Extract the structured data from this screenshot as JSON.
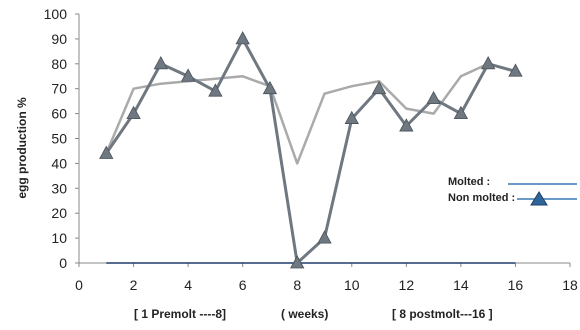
{
  "chart_data": {
    "type": "line",
    "xlim": [
      0,
      18
    ],
    "ylim": [
      0,
      100
    ],
    "x_ticks": [
      0,
      2,
      4,
      6,
      8,
      10,
      12,
      14,
      16,
      18
    ],
    "y_ticks": [
      0,
      10,
      20,
      30,
      40,
      50,
      60,
      70,
      80,
      90,
      100
    ],
    "ylabel": "egg production %",
    "x_sublabels": [
      "[ 1  Premolt ----8]",
      "( weeks)",
      "[ 8  postmolt---16 ]"
    ],
    "grid": false,
    "legend_position": "right",
    "legend_entries": [
      "Molted          :",
      "Non molted :"
    ],
    "series": [
      {
        "name": "Molted",
        "color": "#aaaaaa",
        "marker": "none",
        "x": [
          1,
          2,
          3,
          4,
          5,
          6,
          7,
          8,
          9,
          10,
          11,
          12,
          13,
          14,
          15,
          16
        ],
        "y": [
          44,
          70,
          72,
          73,
          74,
          75,
          71,
          40,
          68,
          71,
          73,
          62,
          60,
          75,
          80,
          77
        ]
      },
      {
        "name": "Non molted",
        "color": "#6f7880",
        "marker": "triangle",
        "x": [
          1,
          2,
          3,
          4,
          5,
          6,
          7,
          8,
          9,
          10,
          11,
          12,
          13,
          14,
          15,
          16
        ],
        "y": [
          44,
          60,
          80,
          75,
          69,
          90,
          70,
          0,
          10,
          58,
          70,
          55,
          66,
          60,
          80,
          77
        ]
      }
    ],
    "baseline": {
      "x": [
        1,
        16
      ],
      "y": 0,
      "color": "#1f3d6b"
    },
    "legend_line_color": "#3a78b5",
    "legend_marker_color": "#2f6699"
  }
}
